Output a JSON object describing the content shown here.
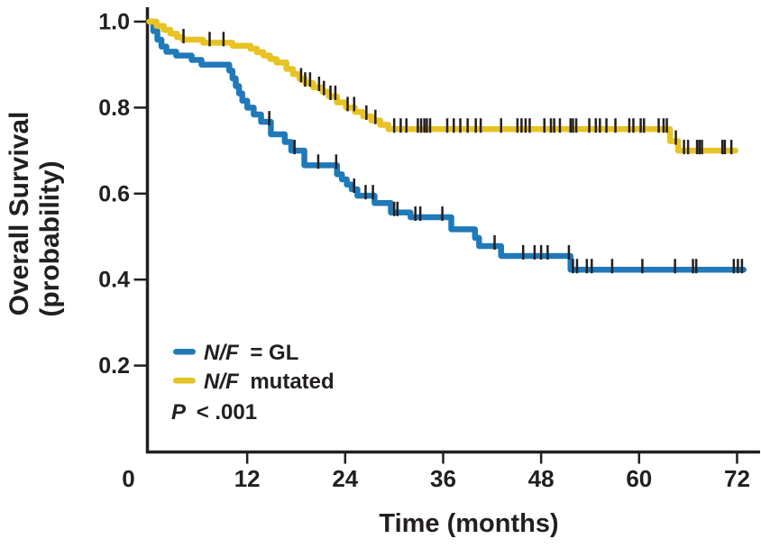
{
  "figure": {
    "background": "#ffffff",
    "text_color": "#231f20",
    "axis_color": "#231f20"
  },
  "chart_data": {
    "type": "line",
    "subtype": "kaplan-meier-step-curves",
    "title": "",
    "xlabel": "Time (months)",
    "ylabel_line1": "Overall Survival",
    "ylabel_line2": "(probability)",
    "xlim": [
      0,
      74
    ],
    "ylim": [
      0,
      1.0
    ],
    "x_ticks": [
      0,
      12,
      24,
      36,
      48,
      60,
      72
    ],
    "y_ticks": [
      1.0,
      0.8,
      0.6,
      0.4,
      0.2
    ],
    "grid": false,
    "legend_position": "inside-lower-left",
    "p_value": "P < .001",
    "p_value_italic": "P",
    "p_value_rest": "< .001",
    "series": [
      {
        "name": "N/F = GL",
        "label_italic": "N/F",
        "label_rest": "= GL",
        "color": "#2079b8",
        "end_time": 72.8,
        "steps": [
          [
            0,
            1.0
          ],
          [
            0.5,
            0.978
          ],
          [
            1.0,
            0.958
          ],
          [
            1.5,
            0.942
          ],
          [
            2.1,
            0.93
          ],
          [
            3.3,
            0.921
          ],
          [
            5.2,
            0.911
          ],
          [
            6.4,
            0.9
          ],
          [
            9.8,
            0.886
          ],
          [
            10.2,
            0.868
          ],
          [
            10.6,
            0.85
          ],
          [
            11.0,
            0.833
          ],
          [
            11.4,
            0.816
          ],
          [
            12.0,
            0.8
          ],
          [
            12.8,
            0.784
          ],
          [
            13.7,
            0.767
          ],
          [
            14.9,
            0.738
          ],
          [
            16.6,
            0.72
          ],
          [
            17.4,
            0.7
          ],
          [
            19.0,
            0.666
          ],
          [
            23.0,
            0.645
          ],
          [
            23.6,
            0.633
          ],
          [
            24.2,
            0.621
          ],
          [
            24.8,
            0.61
          ],
          [
            25.5,
            0.595
          ],
          [
            27.6,
            0.578
          ],
          [
            29.6,
            0.556
          ],
          [
            32.0,
            0.545
          ],
          [
            37.0,
            0.517
          ],
          [
            39.9,
            0.497
          ],
          [
            40.4,
            0.478
          ],
          [
            43.1,
            0.455
          ],
          [
            51.6,
            0.423
          ]
        ],
        "censor_times": [
          14.7,
          17.8,
          20.7,
          22.9,
          25.1,
          26.5,
          27.4,
          30.0,
          30.4,
          32.6,
          33.2,
          35.9,
          42.3,
          45.8,
          47.2,
          48.0,
          48.8,
          51.4,
          51.9,
          52.4,
          53.6,
          54.2,
          56.7,
          60.4,
          64.4,
          66.6,
          67.0,
          71.6,
          72.1,
          72.6
        ]
      },
      {
        "name": "N/F mutated",
        "label_italic": "N/F",
        "label_rest": "mutated",
        "color": "#e7c324",
        "end_time": 71.8,
        "steps": [
          [
            0,
            1.0
          ],
          [
            0.9,
            0.99
          ],
          [
            1.8,
            0.981
          ],
          [
            2.6,
            0.972
          ],
          [
            3.4,
            0.964
          ],
          [
            4.1,
            0.958
          ],
          [
            6.6,
            0.951
          ],
          [
            10.2,
            0.944
          ],
          [
            12.4,
            0.937
          ],
          [
            13.2,
            0.929
          ],
          [
            14.0,
            0.921
          ],
          [
            14.8,
            0.913
          ],
          [
            15.6,
            0.905
          ],
          [
            16.8,
            0.89
          ],
          [
            17.6,
            0.878
          ],
          [
            18.4,
            0.867
          ],
          [
            19.1,
            0.857
          ],
          [
            20.1,
            0.847
          ],
          [
            21.2,
            0.837
          ],
          [
            22.0,
            0.826
          ],
          [
            23.0,
            0.812
          ],
          [
            24.1,
            0.8
          ],
          [
            25.2,
            0.79
          ],
          [
            26.2,
            0.78
          ],
          [
            27.2,
            0.77
          ],
          [
            28.3,
            0.76
          ],
          [
            29.3,
            0.75
          ],
          [
            63.8,
            0.722
          ],
          [
            64.8,
            0.7
          ]
        ],
        "censor_times": [
          4.2,
          7.4,
          9.1,
          18.6,
          19.1,
          19.7,
          20.8,
          21.4,
          22.2,
          22.8,
          24.3,
          25.1,
          26.6,
          27.7,
          30.0,
          30.8,
          31.5,
          32.9,
          33.3,
          33.7,
          34.0,
          34.4,
          36.5,
          37.3,
          38.1,
          39.0,
          40.0,
          40.6,
          43.1,
          45.1,
          45.6,
          46.1,
          46.6,
          48.4,
          49.2,
          49.6,
          50.3,
          51.6,
          51.9,
          52.3,
          53.9,
          54.7,
          55.2,
          56.0,
          57.1,
          58.8,
          59.3,
          60.2,
          60.6,
          62.4,
          63.0,
          63.4,
          64.5,
          65.5,
          66.0,
          67.1,
          67.4,
          67.7,
          70.2,
          70.5,
          71.3
        ]
      }
    ]
  }
}
